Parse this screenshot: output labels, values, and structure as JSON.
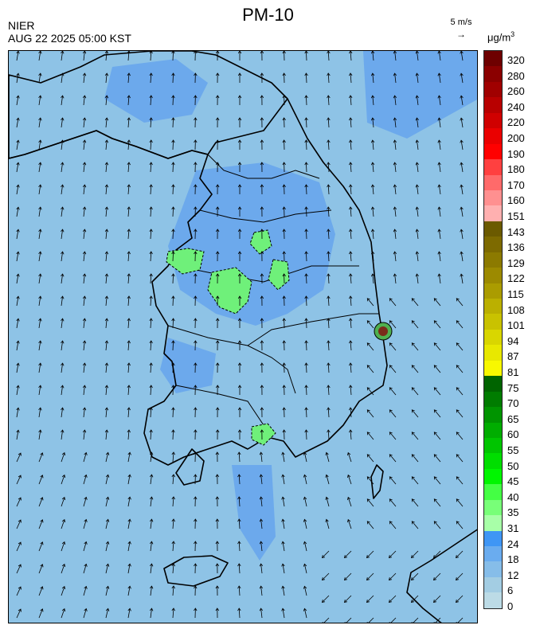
{
  "header": {
    "title": "PM-10",
    "agency": "NIER",
    "datetime": "AUG 22 2025 05:00 KST"
  },
  "wind_reference": {
    "label": "5 m/s",
    "arrow": "→"
  },
  "units": {
    "main": "μg/m",
    "exponent": "3"
  },
  "colorbar": {
    "ticks": [
      "320",
      "280",
      "260",
      "240",
      "220",
      "200",
      "190",
      "180",
      "170",
      "160",
      "151",
      "143",
      "136",
      "129",
      "122",
      "115",
      "108",
      "101",
      "94",
      "87",
      "81",
      "75",
      "70",
      "65",
      "60",
      "55",
      "50",
      "45",
      "40",
      "35",
      "31",
      "24",
      "18",
      "12",
      "6",
      "0"
    ],
    "colors_top_to_bottom": [
      "#6e0000",
      "#8b0000",
      "#a00000",
      "#b80000",
      "#d00000",
      "#ea0000",
      "#ff0000",
      "#ff4040",
      "#ff6a6a",
      "#ff9090",
      "#ffb0b0",
      "#6b5a00",
      "#7d6a00",
      "#8c7a00",
      "#9c8a00",
      "#ab9c00",
      "#bbb000",
      "#c9c200",
      "#d9d600",
      "#e8e800",
      "#f8f800",
      "#006400",
      "#007c00",
      "#009400",
      "#00ad00",
      "#00c500",
      "#00de00",
      "#00f600",
      "#44ff44",
      "#78ff78",
      "#a8ffa8",
      "#3f96f5",
      "#6aacef",
      "#86bde9",
      "#a3cde3",
      "#bcdbe6"
    ]
  },
  "map": {
    "background_color": "#8ec3e6",
    "elevated_color": "#6ca9ec",
    "high_zone_color": "#6ff07a",
    "hotspot_color": "#7a2a1a"
  }
}
